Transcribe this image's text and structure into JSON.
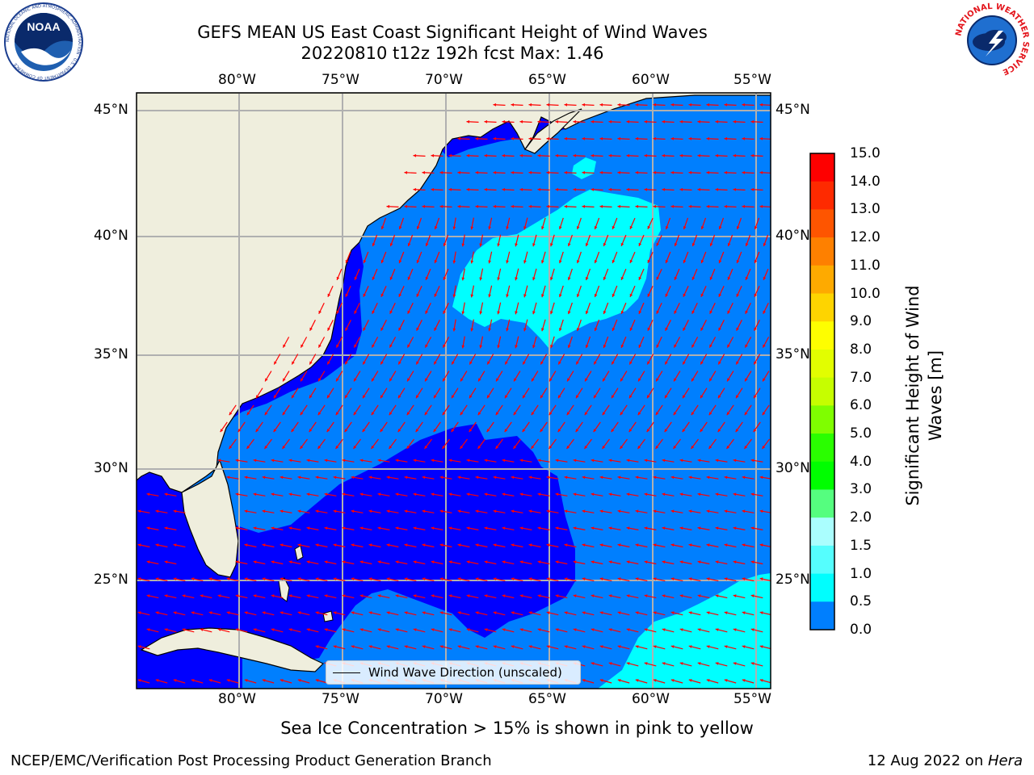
{
  "title_line1": "GEFS MEAN US East Coast Significant Height of Wind Waves",
  "title_line2": "20220810 t12z 192h fcst   Max: 1.46",
  "logos": {
    "left": {
      "name": "noaa-logo",
      "text": "NOAA",
      "ring_text": "NATIONAL OCEANIC AND ATMOSPHERIC ADMINISTRATION · U.S. DEPARTMENT OF COMMERCE"
    },
    "right": {
      "name": "nws-logo",
      "ring_text": "NATIONAL WEATHER SERVICE"
    }
  },
  "map": {
    "lon_ticks": [
      "80°W",
      "75°W",
      "70°W",
      "65°W",
      "60°W",
      "55°W"
    ],
    "lat_ticks": [
      "45°N",
      "40°N",
      "35°N",
      "30°N",
      "25°N"
    ],
    "colors": {
      "land": "#efeedd",
      "ocean_low": "#0000ff",
      "ocean_mid": "#007ffe",
      "ocean_high": "#00ffff",
      "arrows": "#ff0000",
      "grid": "#b0b0b0"
    },
    "legend_label": "Wind Wave Direction (unscaled)"
  },
  "colorbar": {
    "label_line1": "Significant Height of Wind",
    "label_line2": "Waves [m]",
    "ticks": [
      "15.0",
      "14.0",
      "13.0",
      "12.0",
      "11.0",
      "10.0",
      "9.0",
      "8.0",
      "7.0",
      "6.0",
      "5.0",
      "4.0",
      "3.0",
      "2.0",
      "1.5",
      "1.0",
      "0.5",
      "0.0"
    ],
    "colors": [
      "#fe0000",
      "#fe2a00",
      "#fe5500",
      "#fe8000",
      "#feaa00",
      "#fed400",
      "#fefe00",
      "#e2fe00",
      "#c6fe00",
      "#7ffe00",
      "#2afe00",
      "#00fe00",
      "#55fe7f",
      "#aafefe",
      "#55fefe",
      "#00fefe",
      "#007ffe",
      "#0000fe"
    ]
  },
  "note": "Sea Ice Concentration > 15% is shown in pink to yellow",
  "footer_left": "NCEP/EMC/Verification Post Processing Product Generation Branch",
  "footer_right_prefix": "12 Aug 2022 on ",
  "footer_right_host": "Hera"
}
